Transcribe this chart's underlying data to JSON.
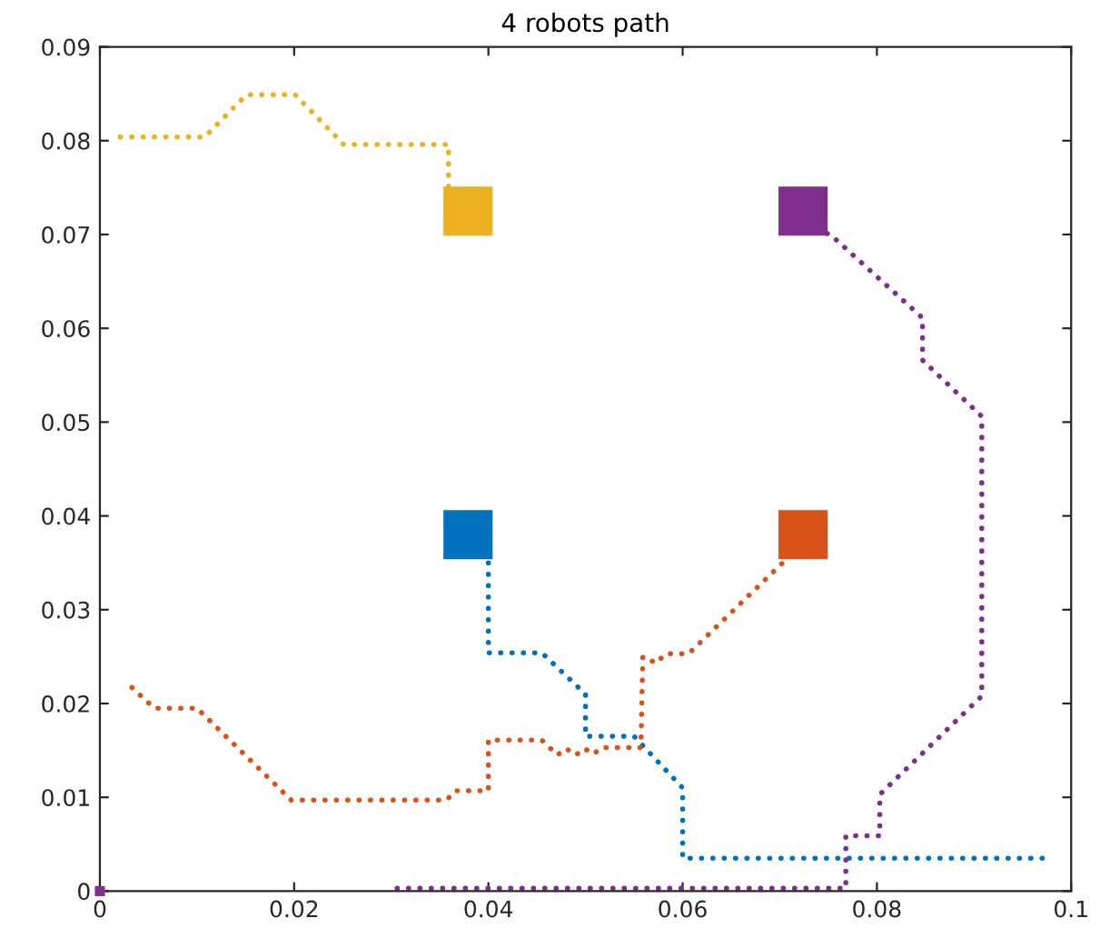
{
  "chart_data": {
    "type": "line",
    "title": "4 robots path",
    "xlim": [
      0,
      0.1
    ],
    "ylim": [
      0,
      0.09
    ],
    "xticks": [
      0,
      0.02,
      0.04,
      0.06,
      0.08,
      0.1
    ],
    "yticks": [
      0,
      0.01,
      0.02,
      0.03,
      0.04,
      0.05,
      0.06,
      0.07,
      0.08,
      0.09
    ],
    "grid": false,
    "legend": false,
    "series": [
      {
        "line_style": "dotted",
        "color": "#edb120",
        "x": [
          0.0021,
          0.0108,
          0.0151,
          0.0201,
          0.0251,
          0.0359,
          0.0359
        ],
        "values": [
          0.0804,
          0.0804,
          0.0849,
          0.0849,
          0.0796,
          0.0796,
          0.0743
        ]
      },
      {
        "line_style": "dotted",
        "color": "#0072bd",
        "x": [
          0.04,
          0.04,
          0.0455,
          0.05,
          0.05,
          0.055,
          0.06,
          0.06,
          0.098
        ],
        "values": [
          0.035,
          0.0254,
          0.0254,
          0.021,
          0.0165,
          0.0165,
          0.011,
          0.0035,
          0.0035
        ]
      },
      {
        "line_style": "dotted",
        "color": "#d95319",
        "x": [
          0.0033,
          0.0056,
          0.01,
          0.0197,
          0.0357,
          0.0366,
          0.04,
          0.04,
          0.0455,
          0.0471,
          0.048,
          0.049,
          0.0499,
          0.0508,
          0.0517,
          0.0557,
          0.0559,
          0.0573,
          0.0582,
          0.0606,
          0.0704
        ],
        "values": [
          0.0217,
          0.0195,
          0.0195,
          0.0097,
          0.0097,
          0.0107,
          0.0107,
          0.0161,
          0.0161,
          0.0145,
          0.0152,
          0.0145,
          0.0152,
          0.0146,
          0.0153,
          0.0153,
          0.025,
          0.0243,
          0.0253,
          0.0253,
          0.0351
        ]
      },
      {
        "line_style": "dotted",
        "color": "#7e2f8e",
        "x": [
          0.0306,
          0.0768,
          0.0768,
          0.0803,
          0.0803,
          0.0908,
          0.0908,
          0.0847,
          0.0847,
          0.0751,
          0.0741
        ],
        "values": [
          0.0003,
          0.0003,
          0.0059,
          0.0059,
          0.0103,
          0.0208,
          0.0506,
          0.0566,
          0.0611,
          0.0701,
          0.0701
        ]
      },
      {
        "type": "scatter",
        "marker": "square",
        "color": "#7e2f8e",
        "x": [
          0
        ],
        "values": [
          0
        ]
      },
      {
        "type": "scatter",
        "marker": "square",
        "color": "#edb120",
        "x": [
          0.0379
        ],
        "values": [
          0.0725
        ]
      },
      {
        "type": "scatter",
        "marker": "square",
        "color": "#0072bd",
        "x": [
          0.0379
        ],
        "values": [
          0.038
        ]
      },
      {
        "type": "scatter",
        "marker": "square",
        "color": "#d95319",
        "x": [
          0.0724
        ],
        "values": [
          0.038
        ]
      },
      {
        "type": "scatter",
        "marker": "square",
        "color": "#7e2f8e",
        "x": [
          0.0724
        ],
        "values": [
          0.0725
        ]
      }
    ]
  }
}
